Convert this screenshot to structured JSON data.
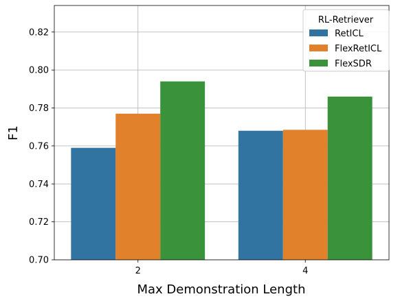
{
  "chart_data": {
    "type": "bar",
    "title": "",
    "xlabel": "Max Demonstration Length",
    "ylabel": "F1",
    "categories": [
      "2",
      "4"
    ],
    "series": [
      {
        "name": "RetICL",
        "color": "#3274a1",
        "values": [
          0.759,
          0.768
        ]
      },
      {
        "name": "FlexRetICL",
        "color": "#e1812c",
        "values": [
          0.777,
          0.7685
        ]
      },
      {
        "name": "FlexSDR",
        "color": "#3a923a",
        "values": [
          0.794,
          0.786
        ]
      }
    ],
    "ylim": [
      0.7,
      0.834
    ],
    "yticks": [
      "0.70",
      "0.72",
      "0.74",
      "0.76",
      "0.78",
      "0.80",
      "0.82"
    ],
    "grid": true,
    "legend": {
      "title": "RL-Retriever",
      "placement": "top-right"
    }
  }
}
